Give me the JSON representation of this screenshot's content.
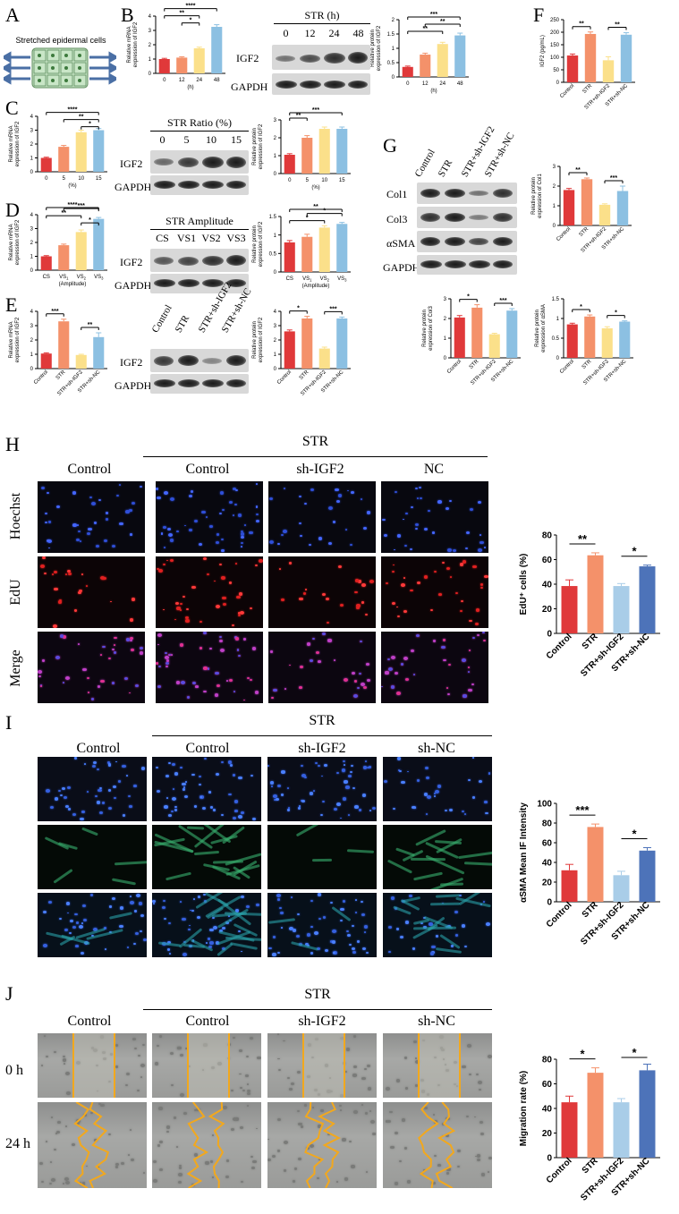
{
  "panels": {
    "A": {
      "label": "A",
      "caption": "Stretched epidermal cells"
    },
    "B": {
      "label": "B",
      "blot_title": "STR (h)",
      "lanes": [
        "0",
        "12",
        "24",
        "48"
      ],
      "rows": [
        "IGF2",
        "GAPDH"
      ]
    },
    "C": {
      "label": "C",
      "blot_title": "STR Ratio (%)",
      "lanes": [
        "0",
        "5",
        "10",
        "15"
      ],
      "rows": [
        "IGF2",
        "GAPDH"
      ]
    },
    "D": {
      "label": "D",
      "blot_title": "STR Amplitude",
      "lanes": [
        "CS",
        "VS1",
        "VS2",
        "VS3"
      ],
      "rows": [
        "IGF2",
        "GAPDH"
      ]
    },
    "E": {
      "label": "E",
      "lanes": [
        "Control",
        "STR",
        "STR+sh-IGF2",
        "STR+sh-NC"
      ],
      "rows": [
        "IGF2",
        "GAPDH"
      ]
    },
    "F": {
      "label": "F"
    },
    "G": {
      "label": "G",
      "lanes": [
        "Control",
        "STR",
        "STR+sh-IGF2",
        "STR+sh-NC"
      ],
      "rows": [
        "Col1",
        "Col3",
        "αSMA",
        "GAPDH"
      ]
    },
    "H": {
      "label": "H",
      "str_header": "STR",
      "columns": [
        "Control",
        "Control",
        "sh-IGF2",
        "NC"
      ],
      "rows": [
        "Hoechst",
        "EdU",
        "Merge"
      ]
    },
    "I": {
      "label": "I",
      "str_header": "STR",
      "columns": [
        "Control",
        "Control",
        "sh-IGF2",
        "sh-NC"
      ]
    },
    "J": {
      "label": "J",
      "str_header": "STR",
      "columns": [
        "Control",
        "Control",
        "sh-IGF2",
        "sh-NC"
      ],
      "rows": [
        "0 h",
        "24 h"
      ]
    }
  },
  "colors": {
    "c1": "#e0393a",
    "c2": "#f4916a",
    "c3": "#fbe08a",
    "c4": "#8cc0e2",
    "c5": "#a9cde8",
    "c6": "#4d73b9"
  },
  "chart_data": [
    {
      "id": "B1",
      "type": "bar",
      "categories": [
        "0",
        "12",
        "24",
        "48"
      ],
      "values": [
        1.0,
        1.1,
        1.75,
        3.25
      ],
      "errors": [
        0.05,
        0.06,
        0.08,
        0.15
      ],
      "xlabel": "(h)",
      "ylabel": "Relative mRNA expression of IGF2",
      "ylim": [
        0,
        4
      ],
      "yticks": [
        0,
        1,
        2,
        3,
        4
      ],
      "sig": [
        "****",
        "**",
        "*"
      ]
    },
    {
      "id": "B2",
      "type": "bar",
      "categories": [
        "0",
        "12",
        "24",
        "48"
      ],
      "values": [
        0.35,
        0.78,
        1.15,
        1.45
      ],
      "errors": [
        0.03,
        0.05,
        0.06,
        0.08
      ],
      "xlabel": "(h)",
      "ylabel": "Relative protein expression of IGF2",
      "ylim": [
        0,
        2.0
      ],
      "yticks": [
        0,
        0.5,
        1.0,
        1.5,
        2.0
      ],
      "sig": [
        "***",
        "**",
        "**"
      ]
    },
    {
      "id": "F",
      "type": "bar",
      "categories": [
        "Control",
        "STR",
        "STR+sh-IGF2",
        "STR+sh-NC"
      ],
      "values": [
        107,
        193,
        88,
        190
      ],
      "errors": [
        6,
        8,
        14,
        8
      ],
      "ylabel": "IGF2 (pg/mL)",
      "ylim": [
        0,
        250
      ],
      "yticks": [
        0,
        50,
        100,
        150,
        200,
        250
      ],
      "sig": [
        "**",
        "**"
      ]
    },
    {
      "id": "C1",
      "type": "bar",
      "categories": [
        "0",
        "5",
        "10",
        "15"
      ],
      "values": [
        1.0,
        1.8,
        2.85,
        3.0
      ],
      "errors": [
        0.05,
        0.1,
        0.15,
        0.12
      ],
      "xlabel": "(%)",
      "ylabel": "Relative mRNA expression of IGF2",
      "ylim": [
        0,
        4
      ],
      "yticks": [
        0,
        1,
        2,
        3,
        4
      ],
      "sig": [
        "****",
        "**",
        "*"
      ]
    },
    {
      "id": "C2",
      "type": "bar",
      "categories": [
        "0",
        "5",
        "10",
        "15"
      ],
      "values": [
        1.05,
        2.0,
        2.5,
        2.5
      ],
      "errors": [
        0.06,
        0.12,
        0.1,
        0.1
      ],
      "xlabel": "(%)",
      "ylabel": "Relative protein expression of IGF2",
      "ylim": [
        0,
        3
      ],
      "yticks": [
        0,
        1,
        2,
        3
      ],
      "sig": [
        "***",
        "**"
      ]
    },
    {
      "id": "D1",
      "type": "bar",
      "categories": [
        "CS",
        "VS1",
        "VS2",
        "VS3"
      ],
      "values": [
        1.0,
        1.8,
        2.75,
        3.7
      ],
      "errors": [
        0.05,
        0.08,
        0.15,
        0.1
      ],
      "xlabel": "(Amplitude)",
      "ylabel": "Relative mRNA expression of IGF2",
      "ylim": [
        0,
        4
      ],
      "yticks": [
        0,
        1,
        2,
        3,
        4
      ],
      "sig": [
        "****",
        "***",
        "**",
        "*"
      ]
    },
    {
      "id": "D2",
      "type": "bar",
      "categories": [
        "CS",
        "VS1",
        "VS2",
        "VS3"
      ],
      "values": [
        0.8,
        0.95,
        1.2,
        1.3
      ],
      "errors": [
        0.05,
        0.07,
        0.05,
        0.04
      ],
      "xlabel": "(Amplitude)",
      "ylabel": "Relative protein expression of IGF2",
      "ylim": [
        0,
        1.5
      ],
      "yticks": [
        0,
        0.5,
        1.0,
        1.5
      ],
      "sig": [
        "**",
        "*",
        "*"
      ]
    },
    {
      "id": "E1",
      "type": "bar",
      "categories": [
        "Control",
        "STR",
        "STR+sh-IGF2",
        "STR+sh-NC"
      ],
      "values": [
        1.05,
        3.3,
        0.95,
        2.2
      ],
      "errors": [
        0.05,
        0.15,
        0.05,
        0.3
      ],
      "ylabel": "Relative mRNA expression of IGF2",
      "ylim": [
        0,
        4
      ],
      "yticks": [
        0,
        1,
        2,
        3,
        4
      ],
      "sig": [
        "***",
        "**"
      ]
    },
    {
      "id": "E2",
      "type": "bar",
      "categories": [
        "Control",
        "STR",
        "STR+sh-IGF2",
        "STR+sh-NC"
      ],
      "values": [
        2.6,
        3.5,
        1.4,
        3.5
      ],
      "errors": [
        0.1,
        0.15,
        0.1,
        0.1
      ],
      "ylabel": "Relative protein expression of IGF2",
      "ylim": [
        0,
        4
      ],
      "yticks": [
        0,
        1,
        2,
        3,
        4
      ],
      "sig": [
        "*",
        "***"
      ]
    },
    {
      "id": "G1",
      "type": "bar",
      "categories": [
        "Control",
        "STR",
        "STR+sh-IGF2",
        "STR+sh-NC"
      ],
      "values": [
        1.8,
        2.35,
        1.05,
        1.75
      ],
      "errors": [
        0.08,
        0.06,
        0.05,
        0.25
      ],
      "ylabel": "Relative protein expression of Col1",
      "ylim": [
        0,
        3
      ],
      "yticks": [
        0,
        1,
        2,
        3
      ],
      "sig": [
        "**",
        "***"
      ]
    },
    {
      "id": "G2",
      "type": "bar",
      "categories": [
        "Control",
        "STR",
        "STR+sh-IGF2",
        "STR+sh-NC"
      ],
      "values": [
        2.05,
        2.55,
        1.2,
        2.4
      ],
      "errors": [
        0.1,
        0.15,
        0.05,
        0.1
      ],
      "ylabel": "Relative protein expression of Col3",
      "ylim": [
        0,
        3
      ],
      "yticks": [
        0,
        1,
        2,
        3
      ],
      "sig": [
        "*",
        "***"
      ]
    },
    {
      "id": "G3",
      "type": "bar",
      "categories": [
        "Control",
        "STR",
        "STR+sh-IGF2",
        "STR+sh-NC"
      ],
      "values": [
        0.85,
        1.05,
        0.75,
        0.92
      ],
      "errors": [
        0.03,
        0.04,
        0.04,
        0.02
      ],
      "ylabel": "Relative protein expression of αSMA",
      "ylim": [
        0,
        1.5
      ],
      "yticks": [
        0,
        0.5,
        1.0,
        1.5
      ],
      "sig": [
        "*",
        "*"
      ]
    },
    {
      "id": "H",
      "type": "bar",
      "categories": [
        "Control",
        "STR",
        "STR+sh-IGF2",
        "STR+sh-NC"
      ],
      "values": [
        38.5,
        63.5,
        38.5,
        54.5
      ],
      "errors": [
        5,
        2,
        2,
        1
      ],
      "ylabel": "EdU⁺ cells (%)",
      "ylim": [
        0,
        80
      ],
      "yticks": [
        0,
        20,
        40,
        60,
        80
      ],
      "sig": [
        "**",
        "*"
      ]
    },
    {
      "id": "I",
      "type": "bar",
      "categories": [
        "Control",
        "STR",
        "STR+sh-IGF2",
        "STR+sh-NC"
      ],
      "values": [
        32,
        76,
        27,
        52
      ],
      "errors": [
        6,
        3,
        4,
        3
      ],
      "ylabel": "αSMA Mean IF Intensity",
      "ylim": [
        0,
        100
      ],
      "yticks": [
        0,
        20,
        40,
        60,
        80,
        100
      ],
      "sig": [
        "***",
        "*"
      ]
    },
    {
      "id": "J",
      "type": "bar",
      "categories": [
        "Control",
        "STR",
        "STR+sh-IGF2",
        "STR+sh-NC"
      ],
      "values": [
        45,
        69,
        45,
        71
      ],
      "errors": [
        5,
        4,
        3,
        5
      ],
      "ylabel": "Migration rate (%)",
      "ylim": [
        0,
        80
      ],
      "yticks": [
        0,
        20,
        40,
        60,
        80
      ],
      "sig": [
        "*",
        "*"
      ]
    }
  ]
}
